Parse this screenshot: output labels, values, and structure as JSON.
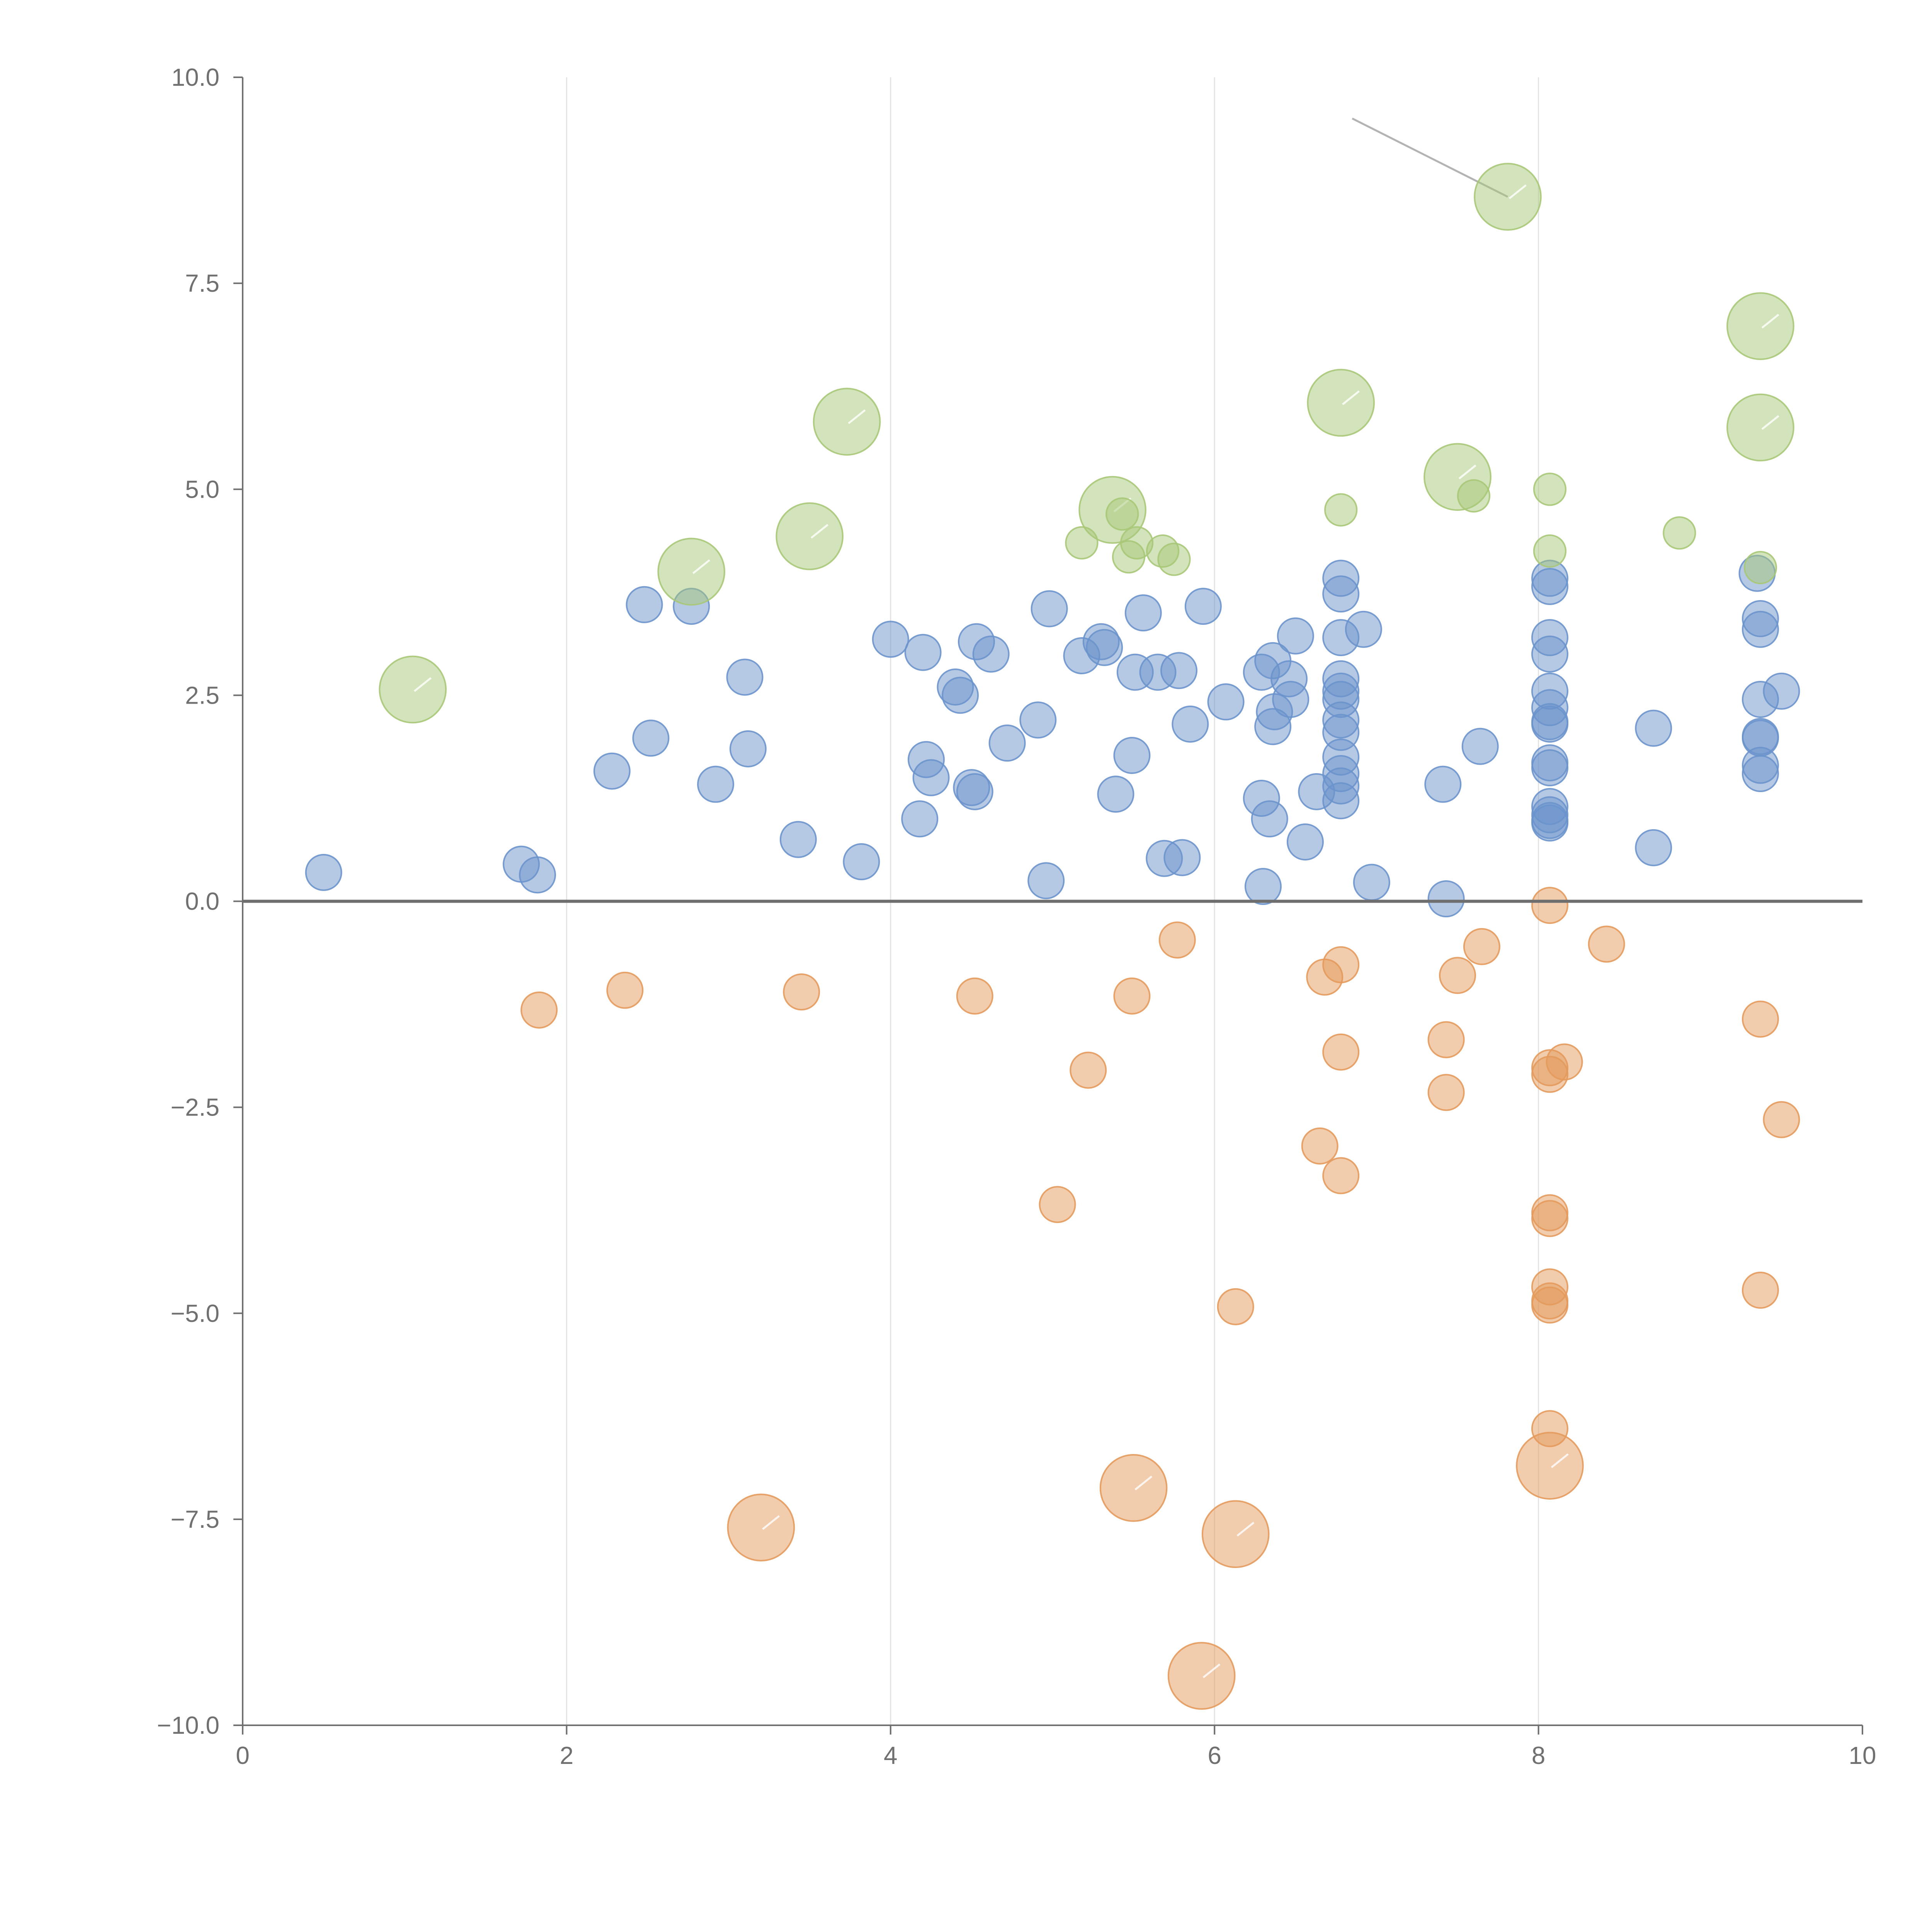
{
  "chart_data": {
    "type": "scatter",
    "variant": "bubble",
    "title": "",
    "xlabel": "",
    "ylabel": "",
    "xlim": [
      0,
      10
    ],
    "ylim": [
      -10,
      10
    ],
    "x_ticks": [
      0,
      2,
      4,
      6,
      8,
      10
    ],
    "y_ticks": [
      -10,
      -7.5,
      -5,
      -2.5,
      0,
      2.5,
      5,
      7.5,
      10
    ],
    "x_tick_labels": [
      "0",
      "2",
      "4",
      "6",
      "8",
      "10"
    ],
    "y_tick_labels": [
      "−10.0",
      "−7.5",
      "−5.0",
      "−2.5",
      "0.0",
      "2.5",
      "5.0",
      "7.5",
      "10.0"
    ],
    "vertical_gridlines": [
      2,
      4,
      6,
      8
    ],
    "reference_line_y": 0,
    "legend": "none",
    "colors": {
      "positive": "#6b93cc",
      "negative": "#e49a5c",
      "outlier": "#a8c878",
      "axis": "#707070",
      "grid": "#e3e3e3"
    },
    "series": [
      {
        "name": "positive",
        "color_key": "positive",
        "points": [
          {
            "x": 0.5,
            "y": 0.35,
            "size": 1
          },
          {
            "x": 1.72,
            "y": 0.45,
            "size": 1
          },
          {
            "x": 1.82,
            "y": 0.32,
            "size": 1
          },
          {
            "x": 2.28,
            "y": 1.58,
            "size": 1
          },
          {
            "x": 2.48,
            "y": 3.6,
            "size": 1
          },
          {
            "x": 2.52,
            "y": 1.98,
            "size": 1
          },
          {
            "x": 2.77,
            "y": 3.58,
            "size": 1
          },
          {
            "x": 2.92,
            "y": 1.42,
            "size": 1
          },
          {
            "x": 3.1,
            "y": 2.72,
            "size": 1
          },
          {
            "x": 3.12,
            "y": 1.85,
            "size": 1
          },
          {
            "x": 3.43,
            "y": 0.75,
            "size": 1
          },
          {
            "x": 3.82,
            "y": 0.48,
            "size": 1
          },
          {
            "x": 4.0,
            "y": 3.18,
            "size": 1
          },
          {
            "x": 4.18,
            "y": 1.0,
            "size": 1
          },
          {
            "x": 4.2,
            "y": 3.02,
            "size": 1
          },
          {
            "x": 4.22,
            "y": 1.72,
            "size": 1
          },
          {
            "x": 4.25,
            "y": 1.5,
            "size": 1
          },
          {
            "x": 4.4,
            "y": 2.6,
            "size": 1
          },
          {
            "x": 4.43,
            "y": 2.5,
            "size": 1
          },
          {
            "x": 4.5,
            "y": 1.38,
            "size": 1
          },
          {
            "x": 4.52,
            "y": 1.33,
            "size": 1
          },
          {
            "x": 4.53,
            "y": 3.15,
            "size": 1
          },
          {
            "x": 4.62,
            "y": 3.0,
            "size": 1
          },
          {
            "x": 4.72,
            "y": 1.92,
            "size": 1
          },
          {
            "x": 4.91,
            "y": 2.2,
            "size": 1
          },
          {
            "x": 4.96,
            "y": 0.25,
            "size": 1
          },
          {
            "x": 4.98,
            "y": 3.55,
            "size": 1
          },
          {
            "x": 5.18,
            "y": 2.98,
            "size": 1
          },
          {
            "x": 5.3,
            "y": 3.15,
            "size": 1
          },
          {
            "x": 5.32,
            "y": 3.08,
            "size": 1
          },
          {
            "x": 5.39,
            "y": 1.3,
            "size": 1
          },
          {
            "x": 5.49,
            "y": 1.77,
            "size": 1
          },
          {
            "x": 5.51,
            "y": 2.78,
            "size": 1
          },
          {
            "x": 5.56,
            "y": 3.5,
            "size": 1
          },
          {
            "x": 5.65,
            "y": 2.78,
            "size": 1
          },
          {
            "x": 5.69,
            "y": 0.52,
            "size": 1
          },
          {
            "x": 5.78,
            "y": 2.8,
            "size": 1
          },
          {
            "x": 5.8,
            "y": 0.53,
            "size": 1
          },
          {
            "x": 5.85,
            "y": 2.15,
            "size": 1
          },
          {
            "x": 5.93,
            "y": 3.58,
            "size": 1
          },
          {
            "x": 6.07,
            "y": 2.42,
            "size": 1
          },
          {
            "x": 6.29,
            "y": 2.78,
            "size": 1
          },
          {
            "x": 6.29,
            "y": 1.25,
            "size": 1
          },
          {
            "x": 6.3,
            "y": 0.18,
            "size": 1
          },
          {
            "x": 6.34,
            "y": 1.0,
            "size": 1
          },
          {
            "x": 6.36,
            "y": 2.92,
            "size": 1
          },
          {
            "x": 6.37,
            "y": 2.3,
            "size": 1
          },
          {
            "x": 6.36,
            "y": 2.12,
            "size": 1
          },
          {
            "x": 6.46,
            "y": 2.7,
            "size": 1
          },
          {
            "x": 6.47,
            "y": 2.45,
            "size": 1
          },
          {
            "x": 6.5,
            "y": 3.22,
            "size": 1
          },
          {
            "x": 6.56,
            "y": 0.72,
            "size": 1
          },
          {
            "x": 6.63,
            "y": 1.33,
            "size": 1
          },
          {
            "x": 6.78,
            "y": 3.92,
            "size": 1
          },
          {
            "x": 6.78,
            "y": 3.73,
            "size": 1
          },
          {
            "x": 6.78,
            "y": 3.2,
            "size": 1
          },
          {
            "x": 6.78,
            "y": 2.7,
            "size": 1
          },
          {
            "x": 6.78,
            "y": 2.55,
            "size": 1
          },
          {
            "x": 6.78,
            "y": 2.45,
            "size": 1
          },
          {
            "x": 6.78,
            "y": 2.2,
            "size": 1
          },
          {
            "x": 6.78,
            "y": 2.05,
            "size": 1
          },
          {
            "x": 6.78,
            "y": 1.75,
            "size": 1
          },
          {
            "x": 6.78,
            "y": 1.55,
            "size": 1
          },
          {
            "x": 6.78,
            "y": 1.4,
            "size": 1
          },
          {
            "x": 6.78,
            "y": 1.22,
            "size": 1
          },
          {
            "x": 6.92,
            "y": 3.3,
            "size": 1
          },
          {
            "x": 6.97,
            "y": 0.23,
            "size": 1
          },
          {
            "x": 7.41,
            "y": 1.42,
            "size": 1
          },
          {
            "x": 7.43,
            "y": 0.03,
            "size": 1
          },
          {
            "x": 7.64,
            "y": 1.88,
            "size": 1
          },
          {
            "x": 8.07,
            "y": 3.92,
            "size": 1
          },
          {
            "x": 8.07,
            "y": 3.82,
            "size": 1
          },
          {
            "x": 8.07,
            "y": 3.2,
            "size": 1
          },
          {
            "x": 8.07,
            "y": 3.0,
            "size": 1
          },
          {
            "x": 8.07,
            "y": 2.55,
            "size": 1
          },
          {
            "x": 8.07,
            "y": 2.35,
            "size": 1
          },
          {
            "x": 8.07,
            "y": 2.18,
            "size": 1
          },
          {
            "x": 8.07,
            "y": 2.15,
            "size": 1
          },
          {
            "x": 8.07,
            "y": 1.68,
            "size": 1
          },
          {
            "x": 8.07,
            "y": 1.62,
            "size": 1
          },
          {
            "x": 8.07,
            "y": 1.15,
            "size": 1
          },
          {
            "x": 8.07,
            "y": 1.05,
            "size": 1
          },
          {
            "x": 8.07,
            "y": 0.98,
            "size": 1
          },
          {
            "x": 8.07,
            "y": 0.95,
            "size": 1
          },
          {
            "x": 8.71,
            "y": 2.1,
            "size": 1
          },
          {
            "x": 8.71,
            "y": 0.65,
            "size": 1
          },
          {
            "x": 9.35,
            "y": 3.98,
            "size": 1
          },
          {
            "x": 9.37,
            "y": 3.43,
            "size": 1
          },
          {
            "x": 9.37,
            "y": 3.3,
            "size": 1
          },
          {
            "x": 9.37,
            "y": 2.45,
            "size": 1
          },
          {
            "x": 9.37,
            "y": 2.0,
            "size": 1
          },
          {
            "x": 9.37,
            "y": 1.98,
            "size": 1
          },
          {
            "x": 9.37,
            "y": 1.65,
            "size": 1
          },
          {
            "x": 9.37,
            "y": 1.55,
            "size": 1
          },
          {
            "x": 9.5,
            "y": 2.55,
            "size": 1
          }
        ]
      },
      {
        "name": "negative",
        "color_key": "negative",
        "points": [
          {
            "x": 1.83,
            "y": -1.32,
            "size": 1
          },
          {
            "x": 2.36,
            "y": -1.08,
            "size": 1
          },
          {
            "x": 3.2,
            "y": -7.6,
            "size": 2.5
          },
          {
            "x": 3.45,
            "y": -1.1,
            "size": 1
          },
          {
            "x": 4.52,
            "y": -1.15,
            "size": 1
          },
          {
            "x": 5.03,
            "y": -3.68,
            "size": 1
          },
          {
            "x": 5.22,
            "y": -2.05,
            "size": 1
          },
          {
            "x": 5.49,
            "y": -1.15,
            "size": 1
          },
          {
            "x": 5.5,
            "y": -7.12,
            "size": 2.5
          },
          {
            "x": 5.77,
            "y": -0.47,
            "size": 1
          },
          {
            "x": 5.92,
            "y": -9.4,
            "size": 2.5
          },
          {
            "x": 6.13,
            "y": -4.92,
            "size": 1
          },
          {
            "x": 6.13,
            "y": -7.68,
            "size": 2.5
          },
          {
            "x": 6.65,
            "y": -2.97,
            "size": 1
          },
          {
            "x": 6.68,
            "y": -0.92,
            "size": 1
          },
          {
            "x": 6.78,
            "y": -0.77,
            "size": 1
          },
          {
            "x": 6.78,
            "y": -1.83,
            "size": 1
          },
          {
            "x": 6.78,
            "y": -3.33,
            "size": 1
          },
          {
            "x": 7.43,
            "y": -1.68,
            "size": 1
          },
          {
            "x": 7.43,
            "y": -2.32,
            "size": 1
          },
          {
            "x": 7.5,
            "y": -0.9,
            "size": 1
          },
          {
            "x": 7.65,
            "y": -0.55,
            "size": 1
          },
          {
            "x": 8.07,
            "y": -0.05,
            "size": 1
          },
          {
            "x": 8.07,
            "y": -2.02,
            "size": 1
          },
          {
            "x": 8.07,
            "y": -2.1,
            "size": 1
          },
          {
            "x": 8.16,
            "y": -1.95,
            "size": 1
          },
          {
            "x": 8.07,
            "y": -3.78,
            "size": 1
          },
          {
            "x": 8.07,
            "y": -3.85,
            "size": 1
          },
          {
            "x": 8.07,
            "y": -4.68,
            "size": 1
          },
          {
            "x": 8.07,
            "y": -4.85,
            "size": 1
          },
          {
            "x": 8.07,
            "y": -4.9,
            "size": 1
          },
          {
            "x": 8.07,
            "y": -6.4,
            "size": 1
          },
          {
            "x": 8.07,
            "y": -6.85,
            "size": 2.5
          },
          {
            "x": 8.42,
            "y": -0.52,
            "size": 1
          },
          {
            "x": 9.37,
            "y": -1.43,
            "size": 1
          },
          {
            "x": 9.37,
            "y": -4.72,
            "size": 1
          },
          {
            "x": 9.5,
            "y": -2.65,
            "size": 1
          }
        ]
      },
      {
        "name": "outlier",
        "color_key": "outlier",
        "points": [
          {
            "x": 1.05,
            "y": 2.57,
            "size": 2.5
          },
          {
            "x": 2.77,
            "y": 4.0,
            "size": 2.5
          },
          {
            "x": 3.5,
            "y": 4.43,
            "size": 2.5
          },
          {
            "x": 3.73,
            "y": 5.82,
            "size": 2.5
          },
          {
            "x": 5.18,
            "y": 4.35,
            "size": 0.8
          },
          {
            "x": 5.37,
            "y": 4.75,
            "size": 2.5
          },
          {
            "x": 5.43,
            "y": 4.7,
            "size": 0.8
          },
          {
            "x": 5.47,
            "y": 4.18,
            "size": 0.8
          },
          {
            "x": 5.52,
            "y": 4.35,
            "size": 0.8
          },
          {
            "x": 5.68,
            "y": 4.25,
            "size": 0.8
          },
          {
            "x": 5.75,
            "y": 4.15,
            "size": 0.8
          },
          {
            "x": 6.78,
            "y": 4.75,
            "size": 0.8
          },
          {
            "x": 6.78,
            "y": 6.05,
            "size": 2.5
          },
          {
            "x": 7.5,
            "y": 5.15,
            "size": 2.5
          },
          {
            "x": 7.6,
            "y": 4.92,
            "size": 0.8
          },
          {
            "x": 7.81,
            "y": 8.55,
            "size": 2.5
          },
          {
            "x": 8.07,
            "y": 5.0,
            "size": 0.8
          },
          {
            "x": 8.07,
            "y": 4.25,
            "size": 0.8
          },
          {
            "x": 8.87,
            "y": 4.47,
            "size": 0.8
          },
          {
            "x": 9.37,
            "y": 4.05,
            "size": 0.8
          },
          {
            "x": 9.37,
            "y": 5.75,
            "size": 2.5
          },
          {
            "x": 9.37,
            "y": 6.98,
            "size": 2.5
          }
        ]
      }
    ],
    "annotations": [
      {
        "type": "leader_line",
        "from": [
          6.85,
          9.5
        ],
        "to": [
          7.81,
          8.55
        ]
      }
    ]
  }
}
